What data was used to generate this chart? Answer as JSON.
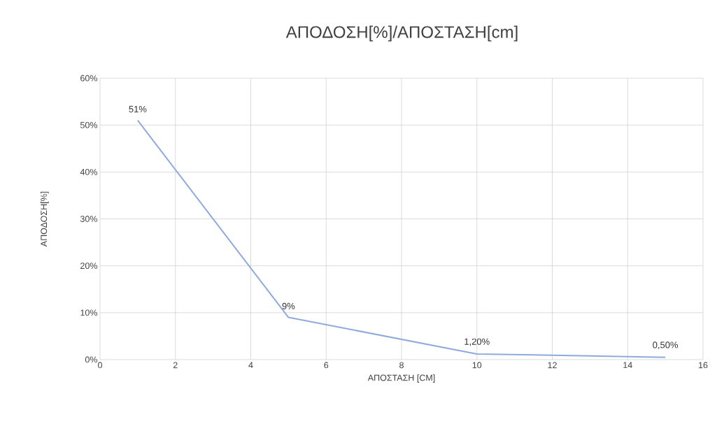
{
  "chart_data": {
    "type": "line",
    "title": "ΑΠΟΔΟΣΗ[%]/ΑΠΟΣΤΑΣΗ[cm]",
    "xlabel": "ΑΠΟΣΤΑΣΗ  [CM]",
    "ylabel": "ΑΠΟΔΟΣΗ[%]",
    "x": [
      1,
      5,
      10,
      15
    ],
    "series": [
      {
        "color": "#8faadc",
        "values": [
          51,
          9,
          1.2,
          0.5
        ],
        "value_labels": [
          "51%",
          "9%",
          "1,20%",
          "0,50%"
        ]
      }
    ],
    "xlim": [
      0,
      16
    ],
    "xticks": [
      0,
      2,
      4,
      6,
      8,
      10,
      12,
      14,
      16
    ],
    "ylim": [
      0,
      60
    ],
    "yticks": [
      {
        "value": 0,
        "label": "0%"
      },
      {
        "value": 10,
        "label": "10%"
      },
      {
        "value": 20,
        "label": "20%"
      },
      {
        "value": 30,
        "label": "30%"
      },
      {
        "value": 40,
        "label": "40%"
      },
      {
        "value": 50,
        "label": "50%"
      },
      {
        "value": 60,
        "label": "60%"
      }
    ],
    "grid": true,
    "marker": "none",
    "line_style": "solid"
  }
}
